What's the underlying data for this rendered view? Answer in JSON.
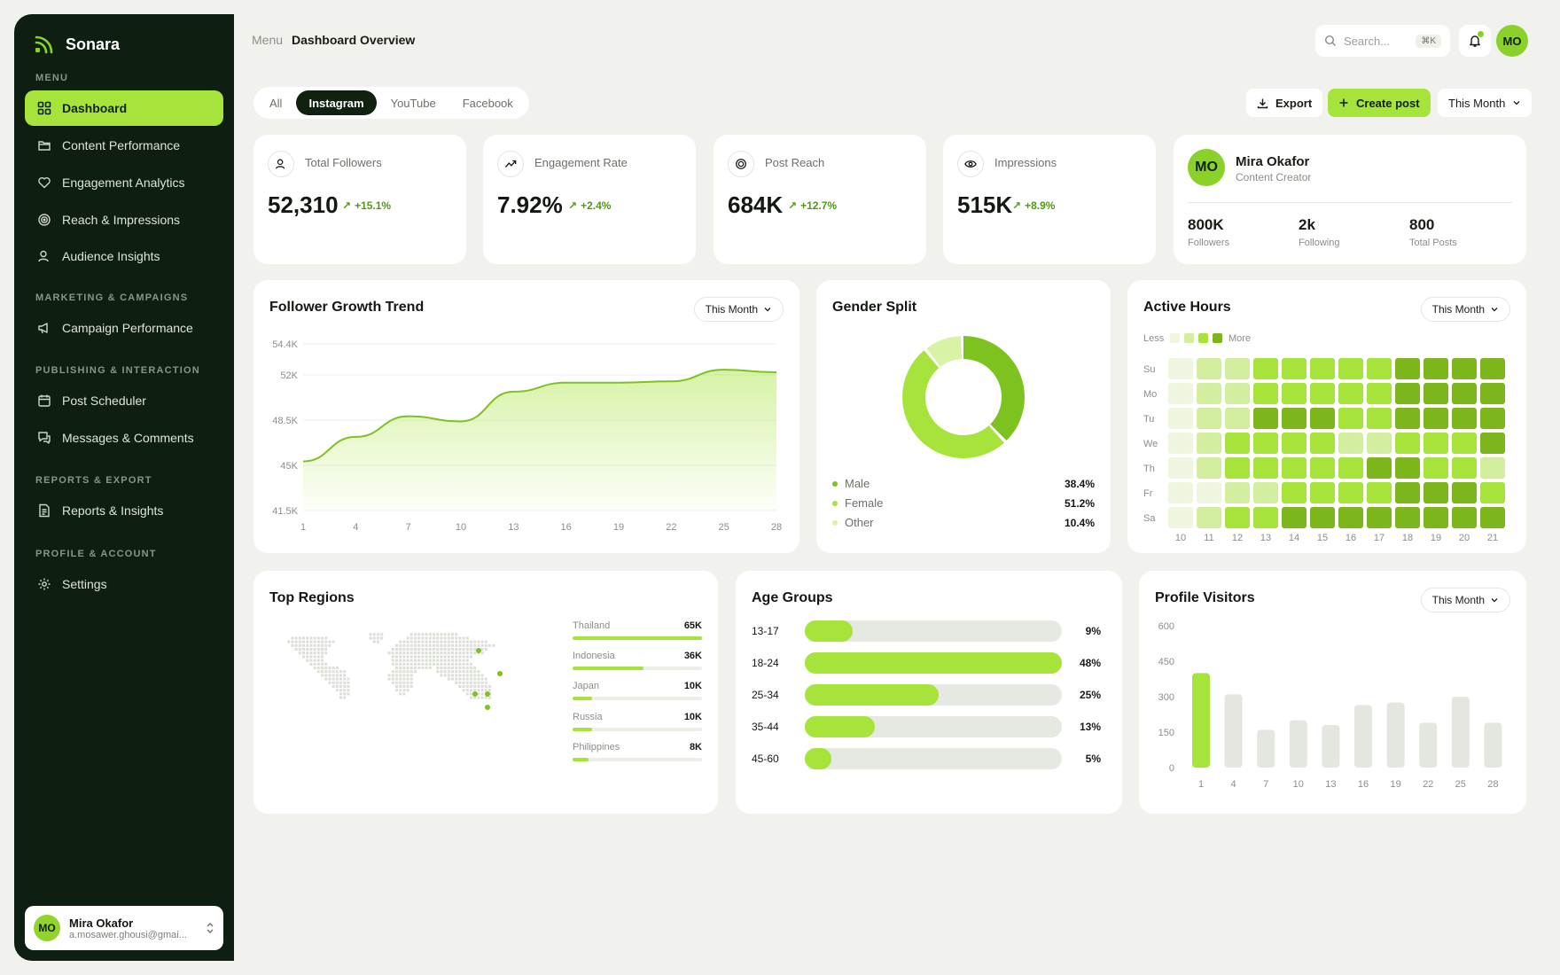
{
  "app": {
    "name": "Sonara"
  },
  "sidebar": {
    "sections": [
      "MENU",
      "MARKETING & CAMPAIGNS",
      "PUBLISHING & INTERACTION",
      "REPORTS & EXPORT",
      "PROFILE & ACCOUNT"
    ],
    "items": [
      {
        "label": "Dashboard",
        "icon": "grid-icon",
        "active": true
      },
      {
        "label": "Content Performance",
        "icon": "folder-icon"
      },
      {
        "label": "Engagement Analytics",
        "icon": "heart-icon"
      },
      {
        "label": "Reach & Impressions",
        "icon": "target-icon"
      },
      {
        "label": "Audience Insights",
        "icon": "users-icon"
      },
      {
        "label": "Campaign Performance",
        "icon": "megaphone-icon"
      },
      {
        "label": "Post Scheduler",
        "icon": "calendar-icon"
      },
      {
        "label": "Messages & Comments",
        "icon": "chat-icon"
      },
      {
        "label": "Reports & Insights",
        "icon": "document-icon"
      },
      {
        "label": "Settings",
        "icon": "gear-icon"
      }
    ],
    "profile": {
      "initials": "MO",
      "name": "Mira Okafor",
      "email": "a.mosawer.ghousi@gmai..."
    }
  },
  "header": {
    "breadcrumb": [
      "Menu",
      "Dashboard Overview"
    ],
    "search_placeholder": "Search...",
    "search_shortcut": "⌘K",
    "avatar_initials": "MO"
  },
  "toolbar": {
    "tabs": [
      "All",
      "Instagram",
      "YouTube",
      "Facebook"
    ],
    "active_tab": "Instagram",
    "export_label": "Export",
    "create_label": "Create post",
    "period_label": "This Month"
  },
  "stats": [
    {
      "label": "Total Followers",
      "value": "52,310",
      "change": "+15.1%",
      "icon": "users-icon"
    },
    {
      "label": "Engagement Rate",
      "value": "7.92%",
      "change": "+2.4%",
      "icon": "trend-up-icon"
    },
    {
      "label": "Post Reach",
      "value": "684K",
      "change": "+12.7%",
      "icon": "target-icon"
    },
    {
      "label": "Impressions",
      "value": "515K",
      "change": "+8.9%",
      "icon": "eye-icon"
    }
  ],
  "profile_card": {
    "initials": "MO",
    "name": "Mira Okafor",
    "role": "Content Creator",
    "stats": [
      {
        "value": "800K",
        "label": "Followers"
      },
      {
        "value": "2k",
        "label": "Following"
      },
      {
        "value": "800",
        "label": "Total Posts"
      }
    ]
  },
  "follower_growth": {
    "title": "Follower Growth Trend",
    "period": "This Month",
    "chart_data": {
      "type": "area",
      "x": [
        1,
        4,
        7,
        10,
        13,
        16,
        19,
        22,
        25,
        28
      ],
      "y": [
        45300,
        47200,
        48800,
        48400,
        50700,
        51400,
        51400,
        51500,
        52400,
        52200
      ],
      "ylim": [
        41500,
        54400
      ],
      "yticks": [
        "54.4K",
        "52K",
        "48.5K",
        "45K",
        "41.5K"
      ],
      "grid": true
    }
  },
  "gender_split": {
    "title": "Gender Split",
    "chart_data": {
      "type": "pie",
      "labels": [
        "Male",
        "Female",
        "Other"
      ],
      "values": [
        38.4,
        51.2,
        10.4
      ],
      "display": [
        "38.4%",
        "51.2%",
        "10.4%"
      ],
      "colors": [
        "#7ec21f",
        "#a6e43b",
        "#d8f2a6"
      ]
    }
  },
  "active_hours": {
    "title": "Active Hours",
    "period": "This Month",
    "legend_less": "Less",
    "legend_more": "More",
    "chart_data": {
      "type": "heatmap",
      "rows": [
        "Su",
        "Mo",
        "Tu",
        "We",
        "Th",
        "Fr",
        "Sa"
      ],
      "cols": [
        "10",
        "11",
        "12",
        "13",
        "14",
        "15",
        "16",
        "17",
        "18",
        "19",
        "20",
        "21"
      ],
      "levels": [
        [
          1,
          2,
          2,
          3,
          3,
          3,
          3,
          3,
          4,
          4,
          4,
          4
        ],
        [
          1,
          2,
          2,
          3,
          3,
          3,
          3,
          3,
          4,
          4,
          4,
          4
        ],
        [
          1,
          2,
          2,
          4,
          4,
          4,
          3,
          3,
          4,
          4,
          4,
          4
        ],
        [
          1,
          2,
          3,
          3,
          3,
          3,
          2,
          2,
          3,
          3,
          3,
          4
        ],
        [
          1,
          2,
          3,
          3,
          3,
          3,
          3,
          4,
          4,
          3,
          3,
          2
        ],
        [
          1,
          1,
          2,
          2,
          3,
          3,
          3,
          3,
          4,
          4,
          4,
          3
        ],
        [
          1,
          2,
          3,
          3,
          4,
          4,
          4,
          4,
          4,
          4,
          4,
          4
        ]
      ],
      "colors": [
        "#eef6df",
        "#d3ee9f",
        "#a6e43b",
        "#7db51d"
      ]
    }
  },
  "top_regions": {
    "title": "Top Regions",
    "items": [
      {
        "name": "Thailand",
        "value": "65K",
        "share": 1.0
      },
      {
        "name": "Indonesia",
        "value": "36K",
        "share": 0.55
      },
      {
        "name": "Japan",
        "value": "10K",
        "share": 0.15
      },
      {
        "name": "Russia",
        "value": "10K",
        "share": 0.15
      },
      {
        "name": "Philippines",
        "value": "8K",
        "share": 0.12
      }
    ]
  },
  "age_groups": {
    "title": "Age Groups",
    "chart_data": {
      "type": "bar",
      "categories": [
        "13-17",
        "18-24",
        "25-34",
        "35-44",
        "45-60"
      ],
      "values": [
        9,
        48,
        25,
        13,
        5
      ],
      "display": [
        "9%",
        "48%",
        "25%",
        "13%",
        "5%"
      ]
    }
  },
  "profile_visitors": {
    "title": "Profile Visitors",
    "period": "This Month",
    "chart_data": {
      "type": "bar",
      "categories": [
        "1",
        "4",
        "7",
        "10",
        "13",
        "16",
        "19",
        "22",
        "25",
        "28"
      ],
      "values": [
        400,
        310,
        160,
        200,
        180,
        265,
        275,
        190,
        300,
        190
      ],
      "highlight_index": 0,
      "ylim": [
        0,
        600
      ],
      "yticks": [
        "600",
        "450",
        "300",
        "150",
        "0"
      ]
    }
  }
}
